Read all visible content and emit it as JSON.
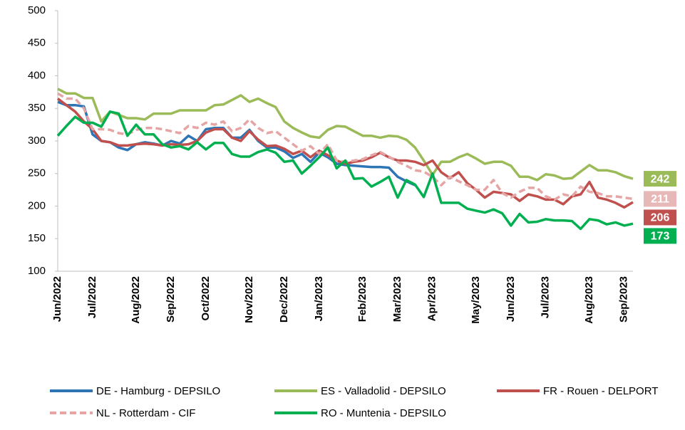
{
  "chart_data": {
    "type": "line",
    "categories": [
      "Jun/2022",
      null,
      null,
      null,
      "Jul/2022",
      null,
      null,
      null,
      null,
      "Aug/2022",
      null,
      null,
      null,
      "Sep/2022",
      null,
      null,
      null,
      "Oct/2022",
      null,
      null,
      null,
      null,
      "Nov/2022",
      null,
      null,
      null,
      "Dec/2022",
      null,
      null,
      null,
      "Jan/2023",
      null,
      null,
      null,
      null,
      "Feb/2023",
      null,
      null,
      null,
      "Mar/2023",
      null,
      null,
      null,
      "Apr/2023",
      null,
      null,
      null,
      null,
      "May/2023",
      null,
      null,
      null,
      "Jun/2023",
      null,
      null,
      null,
      "Jul/2023",
      null,
      null,
      null,
      null,
      "Aug/2023",
      null,
      null,
      null,
      "Sep/2023",
      null
    ],
    "series": [
      {
        "name": "DE - Hamburg - DEPSILO",
        "color": "#2e75b6",
        "dashed": false,
        "values": [
          360,
          355,
          355,
          353,
          310,
          300,
          298,
          290,
          286,
          295,
          298,
          296,
          293,
          300,
          296,
          308,
          300,
          318,
          320,
          320,
          305,
          305,
          317,
          300,
          290,
          290,
          284,
          274,
          280,
          268,
          282,
          275,
          265,
          263,
          262,
          261,
          260,
          260,
          259,
          245,
          238,
          232,
          null,
          null,
          null,
          null,
          null,
          null,
          null,
          null,
          null,
          null,
          null,
          null,
          null,
          null,
          null,
          null,
          null,
          null,
          null,
          null,
          null,
          null,
          null,
          null,
          null
        ]
      },
      {
        "name": "ES - Valladolid - DEPSILO",
        "color": "#9bbb59",
        "dashed": false,
        "values": [
          380,
          373,
          373,
          366,
          366,
          330,
          345,
          340,
          335,
          335,
          333,
          342,
          342,
          342,
          347,
          347,
          347,
          347,
          355,
          356,
          363,
          370,
          360,
          365,
          358,
          352,
          330,
          320,
          313,
          307,
          305,
          317,
          323,
          322,
          315,
          308,
          308,
          305,
          308,
          307,
          302,
          290,
          270,
          248,
          268,
          268,
          275,
          280,
          273,
          265,
          268,
          268,
          262,
          245,
          245,
          240,
          249,
          247,
          242,
          243,
          253,
          263,
          255,
          255,
          252,
          246,
          242
        ]
      },
      {
        "name": "FR - Rouen - DELPORT",
        "color": "#c0504d",
        "dashed": false,
        "values": [
          365,
          355,
          345,
          330,
          318,
          300,
          298,
          293,
          293,
          295,
          296,
          295,
          293,
          295,
          294,
          295,
          300,
          313,
          318,
          318,
          305,
          300,
          315,
          302,
          292,
          293,
          288,
          280,
          285,
          275,
          285,
          278,
          270,
          265,
          268,
          270,
          275,
          282,
          275,
          270,
          270,
          268,
          263,
          270,
          252,
          243,
          252,
          235,
          225,
          213,
          222,
          220,
          218,
          208,
          218,
          215,
          210,
          210,
          203,
          215,
          218,
          237,
          213,
          210,
          205,
          198,
          206
        ]
      },
      {
        "name": "NL - Rotterdam - CIF",
        "color": "#e6a5a5",
        "dashed": true,
        "values": [
          373,
          365,
          365,
          350,
          318,
          318,
          317,
          312,
          310,
          317,
          320,
          320,
          318,
          315,
          312,
          323,
          320,
          328,
          325,
          330,
          315,
          320,
          333,
          320,
          312,
          315,
          305,
          295,
          285,
          292,
          280,
          295,
          270,
          268,
          270,
          272,
          278,
          283,
          276,
          268,
          262,
          255,
          253,
          245,
          232,
          245,
          238,
          232,
          225,
          225,
          240,
          220,
          213,
          222,
          228,
          228,
          215,
          210,
          218,
          215,
          230,
          222,
          220,
          215,
          215,
          213,
          211
        ]
      },
      {
        "name": "RO - Muntenia - DEPSILO",
        "color": "#00b050",
        "dashed": false,
        "values": [
          308,
          323,
          337,
          328,
          328,
          322,
          345,
          342,
          308,
          325,
          310,
          310,
          295,
          290,
          292,
          287,
          298,
          287,
          297,
          297,
          280,
          276,
          276,
          283,
          287,
          282,
          268,
          270,
          250,
          262,
          275,
          290,
          258,
          270,
          242,
          243,
          230,
          237,
          245,
          213,
          240,
          233,
          214,
          250,
          205,
          205,
          205,
          196,
          193,
          190,
          195,
          189,
          170,
          188,
          175,
          176,
          180,
          178,
          178,
          177,
          165,
          180,
          178,
          172,
          175,
          170,
          173
        ]
      }
    ],
    "ylim": [
      100,
      500
    ],
    "yticks": [
      100,
      150,
      200,
      250,
      300,
      350,
      400,
      450,
      500
    ],
    "grid": false
  }
}
